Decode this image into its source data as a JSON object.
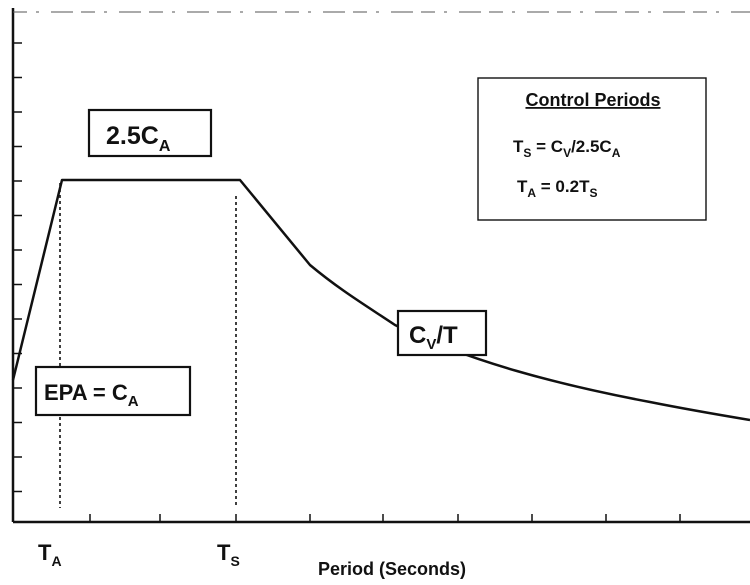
{
  "chart_data": {
    "type": "line",
    "xlabel": "Period (Seconds)",
    "ylabel": "",
    "grid": false,
    "x_markers": [
      {
        "main": "T",
        "sub": "A"
      },
      {
        "main": "T",
        "sub": "S"
      }
    ],
    "annotations": {
      "plateau": {
        "main": "2.5C",
        "sub": "A"
      },
      "epa": {
        "main": "EPA = C",
        "sub": "A"
      },
      "descending": {
        "main": "C",
        "sub": "V",
        "tail": "/T"
      }
    },
    "control_box": {
      "title": "Control Periods",
      "eq1": {
        "a": "T",
        "a_sub": "S",
        "b": " = C",
        "b_sub": "V",
        "c": "/2.5C",
        "c_sub": "A"
      },
      "eq2": {
        "a": "T",
        "a_sub": "A",
        "b": " = 0.2T",
        "b_sub": "S"
      }
    },
    "curve": [
      {
        "segment": "ramp",
        "from": "EPA = C_A at T=0",
        "to": "2.5C_A at T_A"
      },
      {
        "segment": "plateau",
        "from": "T_A",
        "to": "T_S",
        "value": "2.5C_A"
      },
      {
        "segment": "descending",
        "from": "T_S",
        "shape": "C_V/T"
      }
    ]
  }
}
